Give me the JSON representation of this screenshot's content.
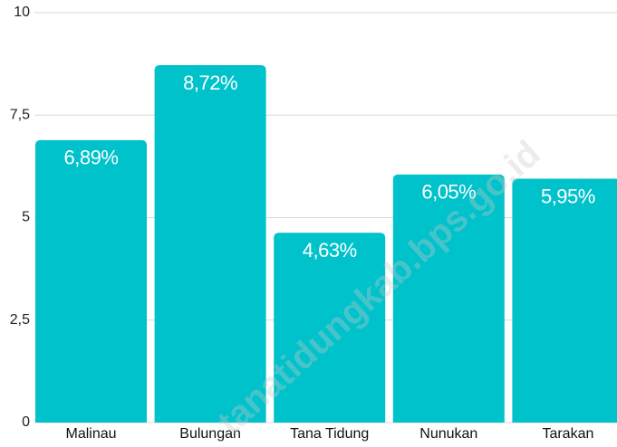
{
  "chart_data": {
    "type": "bar",
    "categories": [
      "Malinau",
      "Bulungan",
      "Tana Tidung",
      "Nunukan",
      "Tarakan"
    ],
    "values": [
      6.89,
      8.72,
      4.63,
      6.05,
      5.95
    ],
    "value_labels": [
      "6,89%",
      "8,72%",
      "4,63%",
      "6,05%",
      "5,95%"
    ],
    "color": "#00c2cb",
    "ylim": [
      0,
      10
    ],
    "yticks": [
      0,
      {
        "value": 2.5,
        "label": "2,5"
      },
      5,
      {
        "value": 7.5,
        "label": "7,5"
      },
      10
    ],
    "grid": true,
    "watermark": "tanatidungkab.bps.go.id"
  }
}
